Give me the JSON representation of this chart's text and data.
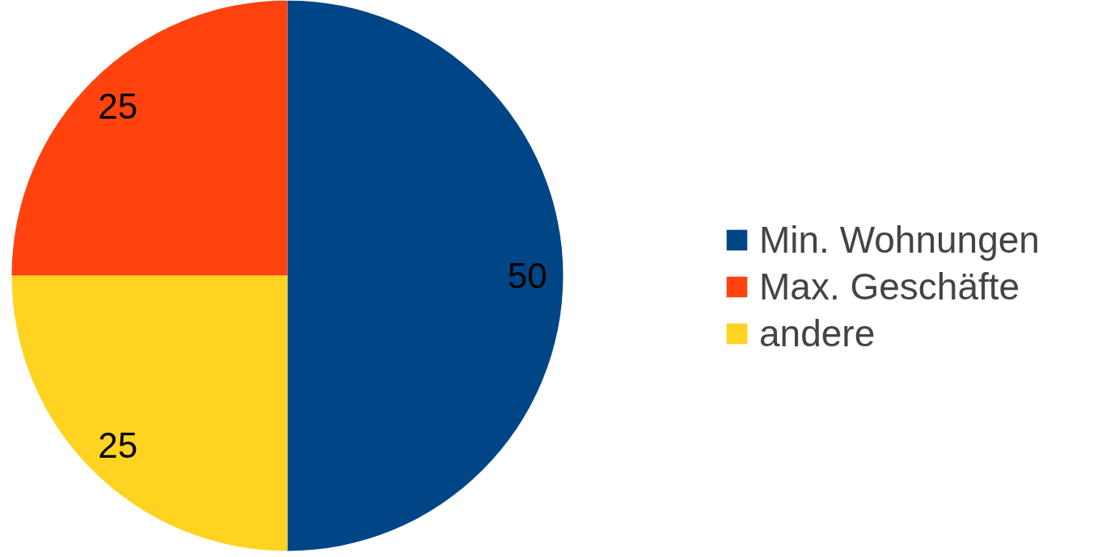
{
  "chart_data": {
    "type": "pie",
    "categories": [
      "Min. Wohnungen",
      "Max. Geschäfte",
      "andere"
    ],
    "values": [
      50,
      25,
      25
    ],
    "colors": [
      "#004586",
      "#ff420e",
      "#ffd320"
    ],
    "data_labels": true,
    "legend": "right"
  }
}
